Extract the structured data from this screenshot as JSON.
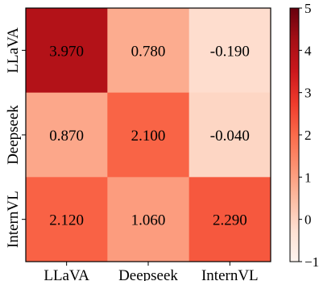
{
  "chart_data": {
    "type": "heatmap",
    "rows": [
      "LLaVA",
      "Deepseek",
      "InternVL"
    ],
    "columns": [
      "LLaVA",
      "Deepseek",
      "InternVL"
    ],
    "values": [
      [
        3.97,
        0.78,
        -0.19
      ],
      [
        0.87,
        2.1,
        -0.04
      ],
      [
        2.12,
        1.06,
        2.29
      ]
    ],
    "cell_text": [
      [
        "3.970",
        "0.780",
        "-0.190"
      ],
      [
        "0.870",
        "2.100",
        "-0.040"
      ],
      [
        "2.120",
        "1.060",
        "2.290"
      ]
    ],
    "colorbar": {
      "min": -1,
      "max": 5,
      "ticks": [
        -1,
        0,
        1,
        2,
        3,
        4,
        5
      ],
      "tick_labels": [
        "−1",
        "0",
        "1",
        "2",
        "3",
        "4",
        "5"
      ],
      "colormap": "Reds",
      "colors": [
        "#fff5f0",
        "#fee0d2",
        "#fcbba1",
        "#fc9272",
        "#fb6a4a",
        "#ef3b2c",
        "#cb181d",
        "#a50f15",
        "#67000d"
      ]
    },
    "title": "",
    "xlabel": "",
    "ylabel": "",
    "grid": false
  }
}
